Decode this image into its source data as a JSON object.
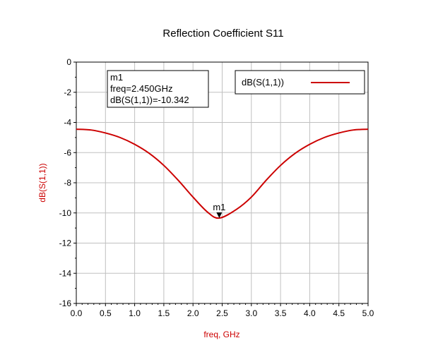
{
  "chart_data": {
    "type": "line",
    "title": "Reflection Coefficient S11",
    "xlabel": "freq, GHz",
    "ylabel": "dB(S(1,1))",
    "xlim": [
      0.0,
      5.0
    ],
    "ylim": [
      -16,
      0
    ],
    "x_ticks": [
      "0.0",
      "0.5",
      "1.0",
      "1.5",
      "2.0",
      "2.5",
      "3.0",
      "3.5",
      "4.0",
      "4.5",
      "5.0"
    ],
    "y_ticks": [
      "0",
      "-2",
      "-4",
      "-6",
      "-8",
      "-10",
      "-12",
      "-14",
      "-16"
    ],
    "grid": true,
    "legend_position": "top-right",
    "series": [
      {
        "name": "dB(S(1,1))",
        "color": "#cc0000",
        "x": [
          0.0,
          0.25,
          0.5,
          0.75,
          1.0,
          1.25,
          1.5,
          1.75,
          2.0,
          2.25,
          2.45,
          2.75,
          3.0,
          3.25,
          3.5,
          3.75,
          4.0,
          4.25,
          4.5,
          4.75,
          5.0
        ],
        "y": [
          -4.45,
          -4.5,
          -4.7,
          -5.0,
          -5.45,
          -6.05,
          -6.85,
          -7.85,
          -8.95,
          -9.95,
          -10.342,
          -9.75,
          -8.95,
          -7.85,
          -6.85,
          -6.05,
          -5.45,
          -5.0,
          -4.7,
          -4.5,
          -4.45
        ]
      }
    ],
    "marker": {
      "name": "m1",
      "x": 2.45,
      "y": -10.342,
      "lines": [
        "m1",
        "freq=2.450GHz",
        "dB(S(1,1))=-10.342"
      ]
    },
    "colors": {
      "axis_label": "#cc0000",
      "grid": "#c0c0c0",
      "series": "#cc0000"
    }
  }
}
